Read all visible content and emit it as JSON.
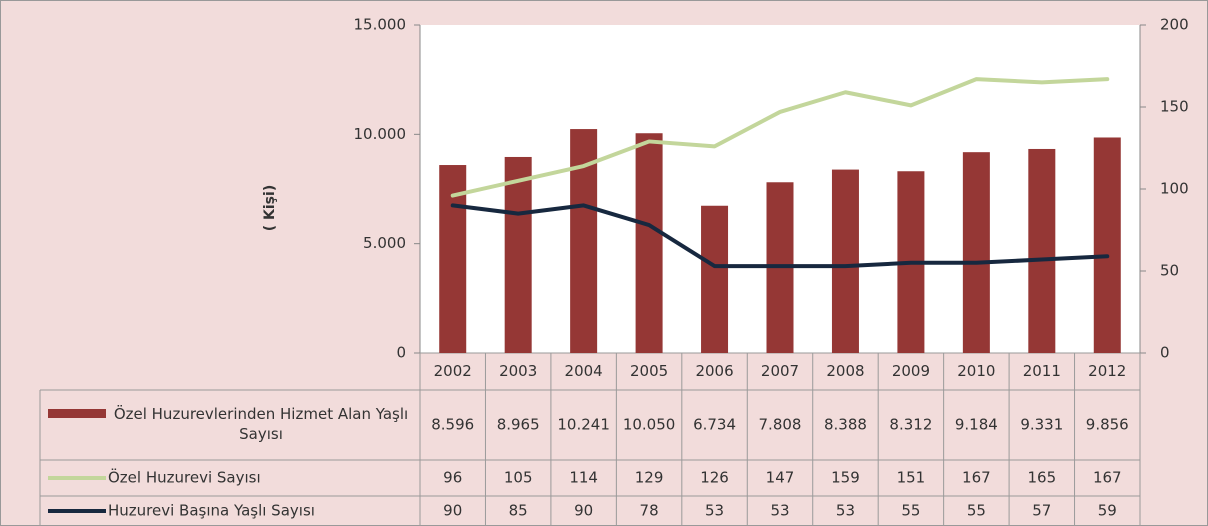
{
  "chart_data": {
    "type": "combo",
    "y_label": "( Kişi)",
    "categories": [
      "2002",
      "2003",
      "2004",
      "2005",
      "2006",
      "2007",
      "2008",
      "2009",
      "2010",
      "2011",
      "2012"
    ],
    "series": [
      {
        "name": "Özel Huzurevlerinden Hizmet Alan Yaşlı Sayısı",
        "type": "bar",
        "color": "#953735",
        "values": [
          8596,
          8965,
          10241,
          10050,
          6734,
          7808,
          8388,
          8312,
          9184,
          9331,
          9856
        ],
        "value_labels": [
          "8.596",
          "8.965",
          "10.241",
          "10.050",
          "6.734",
          "7.808",
          "8.388",
          "8.312",
          "9.184",
          "9.331",
          "9.856"
        ]
      },
      {
        "name": "Özel Huzurevi Sayısı",
        "type": "line",
        "axis": "y2",
        "color": "#c3d69b",
        "values": [
          96,
          105,
          114,
          129,
          126,
          147,
          159,
          151,
          167,
          165,
          167
        ]
      },
      {
        "name": "Huzurevi Başına Yaşlı Sayısı",
        "type": "line",
        "axis": "y2",
        "color": "#17283f",
        "values": [
          90,
          85,
          90,
          78,
          53,
          53,
          53,
          55,
          55,
          57,
          59
        ]
      }
    ],
    "ylim": [
      0,
      15000
    ],
    "yticks": [
      0,
      {
        "value": 5000,
        "label": "5.000"
      },
      {
        "value": 10000,
        "label": "10.000"
      },
      {
        "value": 15000,
        "label": "15.000"
      }
    ],
    "y2lim": [
      0,
      200
    ],
    "y2ticks": [
      0,
      50,
      100,
      150,
      200
    ]
  }
}
